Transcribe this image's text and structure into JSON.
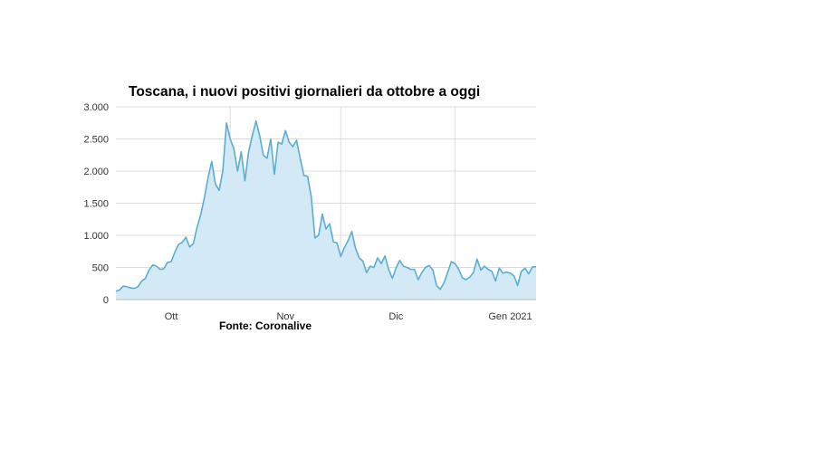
{
  "chart_data": {
    "type": "area",
    "title": "Toscana, i nuovi positivi giornalieri da ottobre a oggi",
    "source": "Fonte: Coronalive",
    "xlabel": "",
    "ylabel": "",
    "ylim": [
      0,
      3000
    ],
    "yticks": [
      0,
      500,
      1000,
      1500,
      2000,
      2500,
      3000
    ],
    "ytick_labels": [
      "0",
      "500",
      "1.000",
      "1.500",
      "2.000",
      "2.500",
      "3.000"
    ],
    "xtick_labels": [
      {
        "label": "Ott",
        "day": 15
      },
      {
        "label": "Nov",
        "day": 46
      },
      {
        "label": "Dic",
        "day": 76
      },
      {
        "label": "Gen 2021",
        "day": 107
      }
    ],
    "grid": true,
    "colors": {
      "line": "#5aaed0",
      "fill": "#d3e9f5",
      "grid": "#dcdcdc"
    },
    "series": [
      {
        "values": [
          130,
          150,
          210,
          200,
          180,
          175,
          200,
          290,
          330,
          460,
          540,
          520,
          470,
          480,
          580,
          590,
          740,
          860,
          890,
          970,
          820,
          870,
          1120,
          1320,
          1580,
          1900,
          2150,
          1800,
          1700,
          2000,
          2750,
          2500,
          2350,
          2000,
          2300,
          1850,
          2300,
          2550,
          2780,
          2550,
          2250,
          2200,
          2500,
          1950,
          2450,
          2420,
          2630,
          2450,
          2380,
          2480,
          2200,
          1930,
          1920,
          1600,
          960,
          1000,
          1330,
          1100,
          1180,
          900,
          880,
          670,
          810,
          920,
          1060,
          800,
          650,
          600,
          420,
          520,
          500,
          650,
          560,
          680,
          470,
          330,
          490,
          610,
          520,
          500,
          470,
          470,
          310,
          420,
          500,
          530,
          460,
          220,
          160,
          260,
          420,
          590,
          560,
          470,
          340,
          310,
          350,
          420,
          630,
          460,
          520,
          470,
          440,
          290,
          490,
          410,
          430,
          410,
          370,
          220,
          440,
          490,
          400,
          510,
          510
        ]
      }
    ]
  }
}
